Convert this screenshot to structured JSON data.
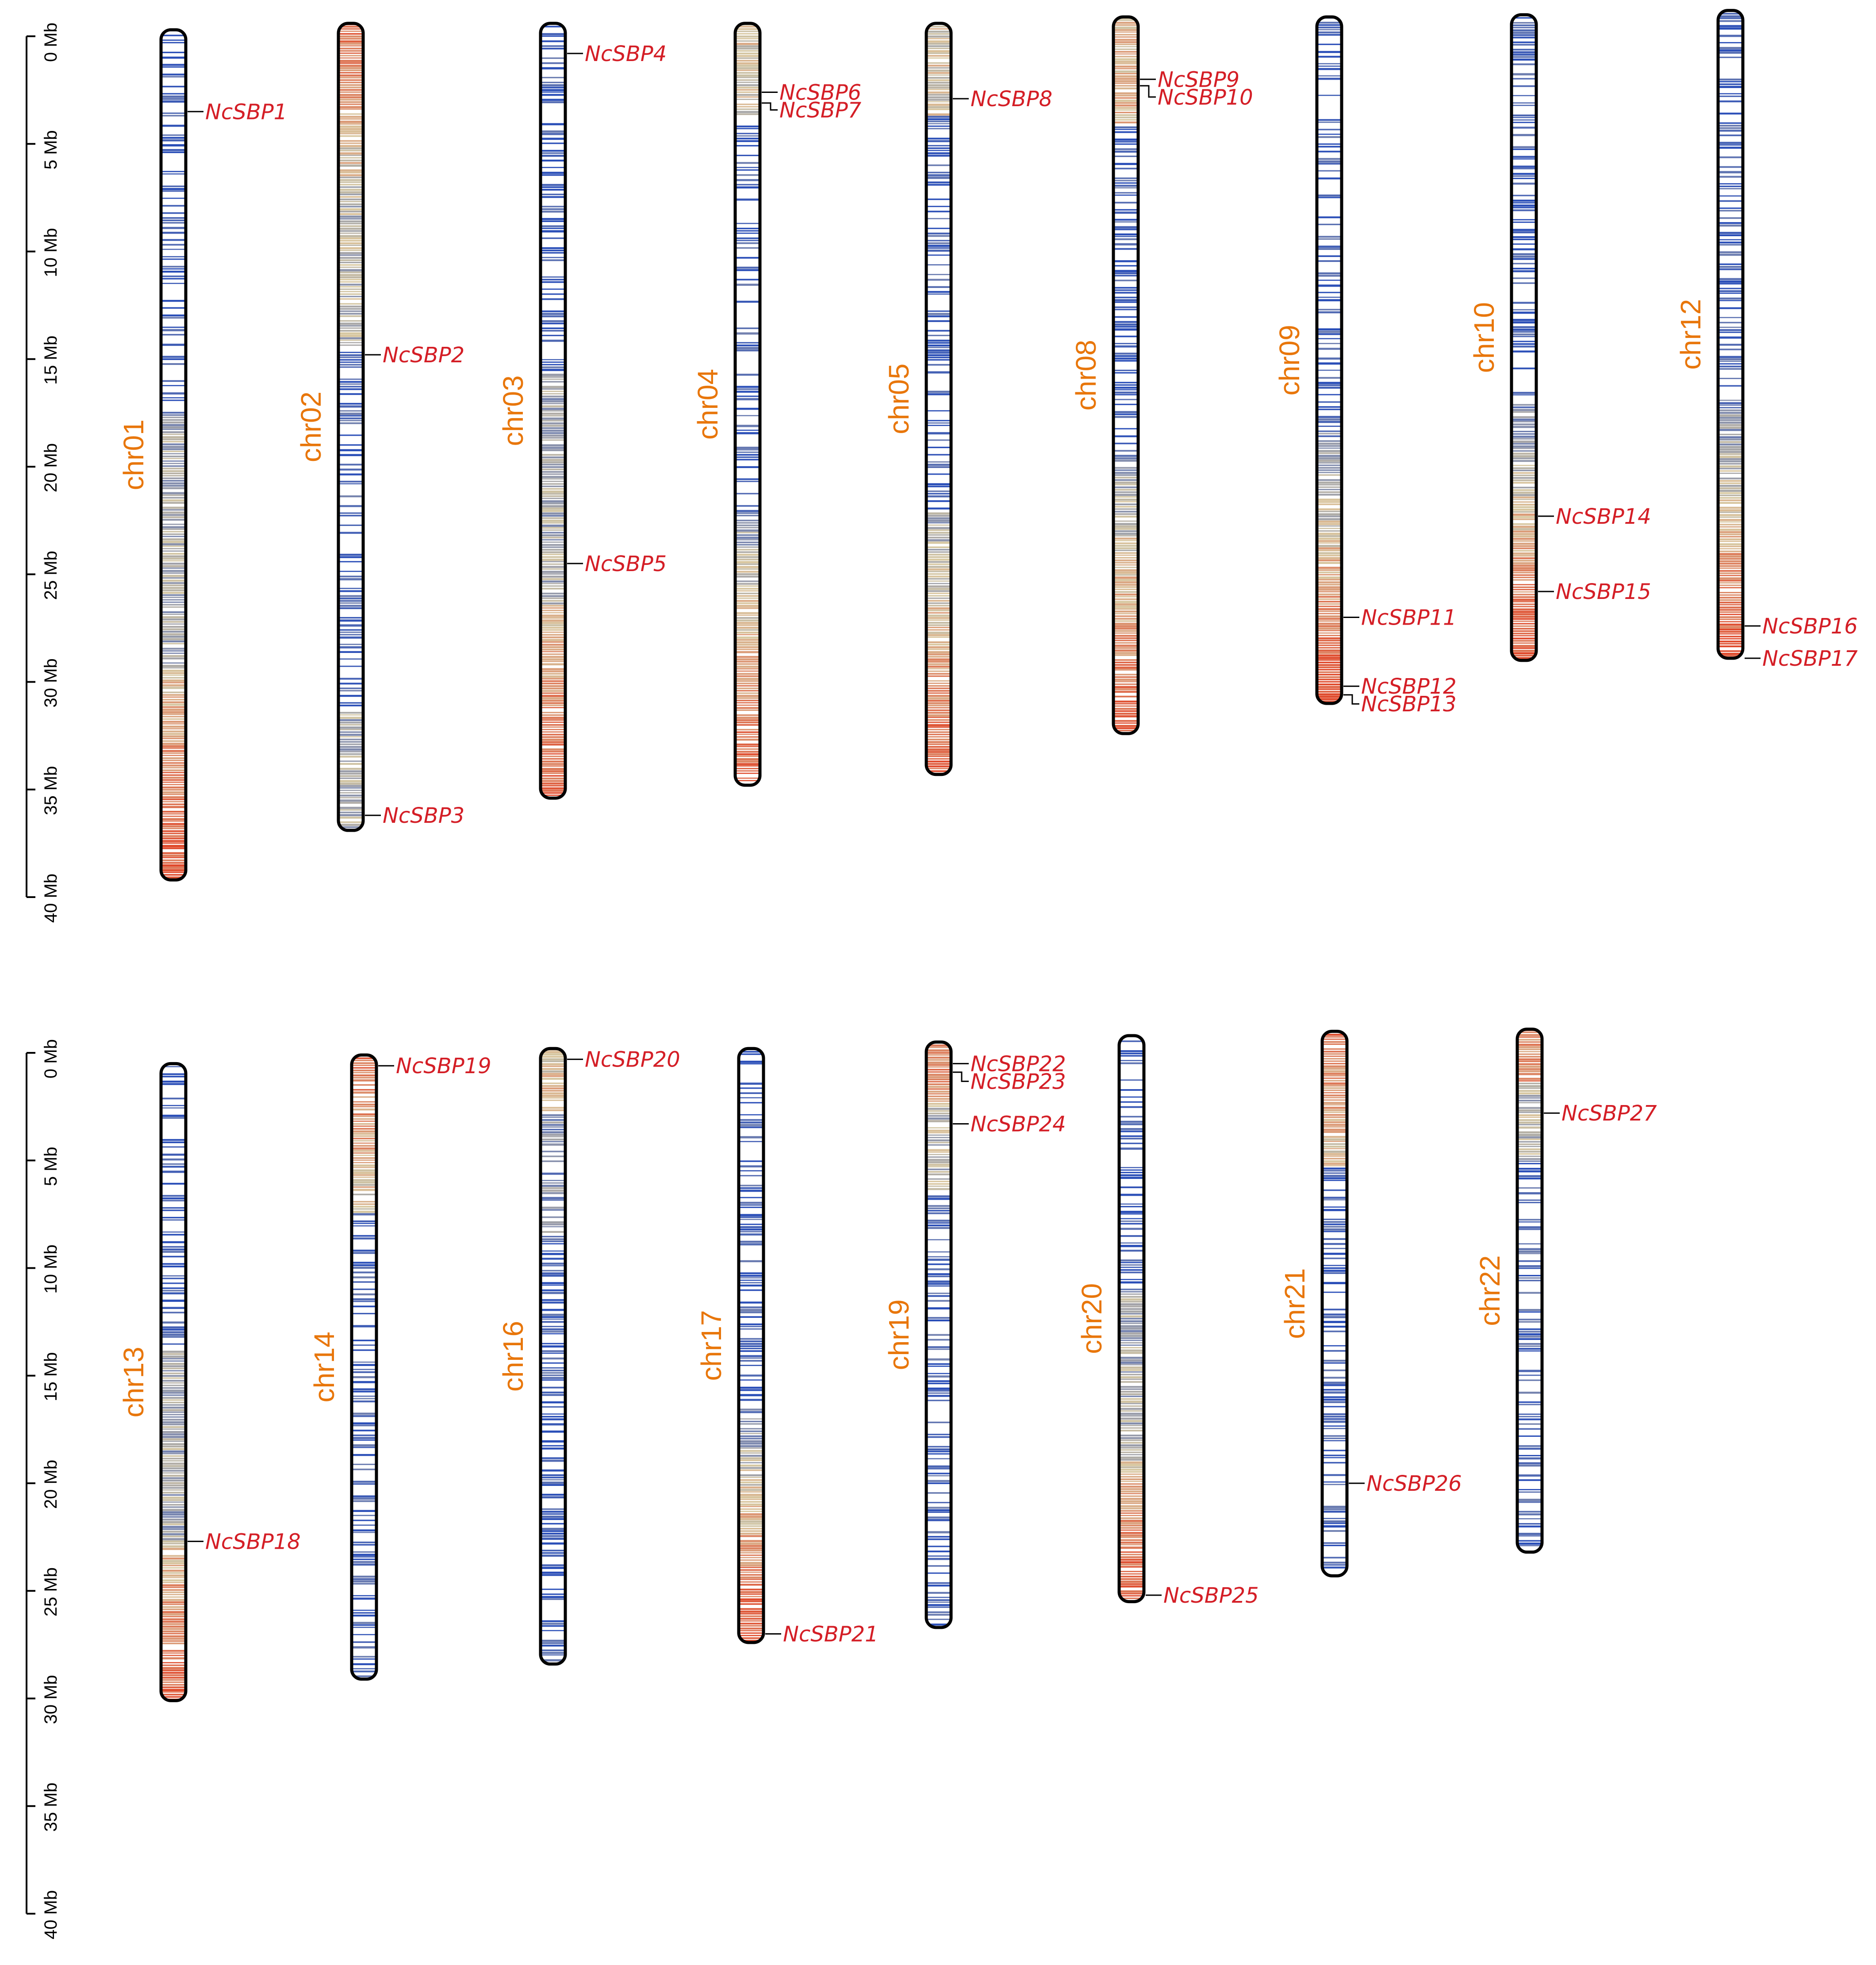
{
  "colors": {
    "chromosome_label": "#E8760A",
    "gene_label": "#D41E26",
    "outline": "#000000",
    "density_low": "#2B4FB8",
    "density_mid": "#D8C9A2",
    "density_high": "#E04A2C",
    "empty": "#FFFFFF"
  },
  "scale_bars": [
    {
      "name": "top-scale",
      "ticks": [
        "0 Mb",
        "5 Mb",
        "10 Mb",
        "15 Mb",
        "20 Mb",
        "25 Mb",
        "30 Mb",
        "35 Mb",
        "40 Mb"
      ]
    },
    {
      "name": "bottom-scale",
      "ticks": [
        "0 Mb",
        "5 Mb",
        "10 Mb",
        "15 Mb",
        "20 Mb",
        "25 Mb",
        "30 Mb",
        "35 Mb",
        "40 Mb"
      ]
    }
  ],
  "rows": [
    {
      "chromosomes": [
        {
          "name": "chr01",
          "length_mb": 39.5,
          "start_mb": -0.3,
          "profile": "blue-mid-red",
          "genes": [
            {
              "label": "NcSBP1",
              "pos_mb": 3.5
            }
          ]
        },
        {
          "name": "chr02",
          "length_mb": 37.5,
          "start_mb": -0.6,
          "profile": "red-mid-blue-mid",
          "genes": [
            {
              "label": "NcSBP2",
              "pos_mb": 14.8
            },
            {
              "label": "NcSBP3",
              "pos_mb": 36.2
            }
          ]
        },
        {
          "name": "chr03",
          "length_mb": 36.0,
          "start_mb": -0.6,
          "profile": "blue-mid-red",
          "genes": [
            {
              "label": "NcSBP4",
              "pos_mb": 0.8
            },
            {
              "label": "NcSBP5",
              "pos_mb": 24.5
            }
          ]
        },
        {
          "name": "chr04",
          "length_mb": 35.4,
          "start_mb": -0.6,
          "profile": "mid-blue-red",
          "genes": [
            {
              "label": "NcSBP6",
              "pos_mb": 2.6
            },
            {
              "label": "NcSBP7",
              "pos_mb": 3.1
            }
          ]
        },
        {
          "name": "chr05",
          "length_mb": 34.9,
          "start_mb": -0.6,
          "profile": "mid-blue-red",
          "genes": [
            {
              "label": "NcSBP8",
              "pos_mb": 2.9
            }
          ]
        },
        {
          "name": "chr08",
          "length_mb": 33.3,
          "start_mb": -0.9,
          "profile": "red-blue-red",
          "genes": [
            {
              "label": "NcSBP9",
              "pos_mb": 2.0
            },
            {
              "label": "NcSBP10",
              "pos_mb": 2.3
            }
          ]
        },
        {
          "name": "chr09",
          "length_mb": 31.9,
          "start_mb": -0.9,
          "profile": "blue-red",
          "genes": [
            {
              "label": "NcSBP11",
              "pos_mb": 27.0
            },
            {
              "label": "NcSBP12",
              "pos_mb": 30.2
            },
            {
              "label": "NcSBP13",
              "pos_mb": 30.6
            }
          ]
        },
        {
          "name": "chr10",
          "length_mb": 30.0,
          "start_mb": -1.0,
          "profile": "blue-red",
          "genes": [
            {
              "label": "NcSBP14",
              "pos_mb": 22.3
            },
            {
              "label": "NcSBP15",
              "pos_mb": 25.8
            }
          ]
        },
        {
          "name": "chr12",
          "length_mb": 30.1,
          "start_mb": -1.2,
          "profile": "blue-red",
          "genes": [
            {
              "label": "NcSBP16",
              "pos_mb": 27.4
            },
            {
              "label": "NcSBP17",
              "pos_mb": 28.9
            }
          ]
        }
      ]
    },
    {
      "chromosomes": [
        {
          "name": "chr13",
          "length_mb": 29.6,
          "start_mb": 0.5,
          "profile": "blue-mid-red",
          "genes": [
            {
              "label": "NcSBP18",
              "pos_mb": 22.7
            }
          ]
        },
        {
          "name": "chr14",
          "length_mb": 29.0,
          "start_mb": 0.1,
          "profile": "red-blue",
          "genes": [
            {
              "label": "NcSBP19",
              "pos_mb": 0.6
            }
          ]
        },
        {
          "name": "chr16",
          "length_mb": 28.6,
          "start_mb": -0.2,
          "profile": "mid-blue",
          "genes": [
            {
              "label": "NcSBP20",
              "pos_mb": 0.3
            }
          ]
        },
        {
          "name": "chr17",
          "length_mb": 27.6,
          "start_mb": -0.2,
          "profile": "blue-red",
          "genes": [
            {
              "label": "NcSBP21",
              "pos_mb": 27.0
            }
          ]
        },
        {
          "name": "chr19",
          "length_mb": 27.2,
          "start_mb": -0.5,
          "profile": "red-mid-blue",
          "genes": [
            {
              "label": "NcSBP22",
              "pos_mb": 0.5
            },
            {
              "label": "NcSBP23",
              "pos_mb": 0.9
            },
            {
              "label": "NcSBP24",
              "pos_mb": 3.3
            }
          ]
        },
        {
          "name": "chr20",
          "length_mb": 26.3,
          "start_mb": -0.8,
          "profile": "blue-mid-red",
          "genes": [
            {
              "label": "NcSBP25",
              "pos_mb": 25.2
            }
          ]
        },
        {
          "name": "chr21",
          "length_mb": 25.3,
          "start_mb": -1.0,
          "profile": "red-blue",
          "genes": [
            {
              "label": "NcSBP26",
              "pos_mb": 20.0
            }
          ]
        },
        {
          "name": "chr22",
          "length_mb": 24.3,
          "start_mb": -1.1,
          "profile": "red-mid-blue",
          "genes": [
            {
              "label": "NcSBP27",
              "pos_mb": 2.8
            }
          ]
        }
      ]
    }
  ]
}
